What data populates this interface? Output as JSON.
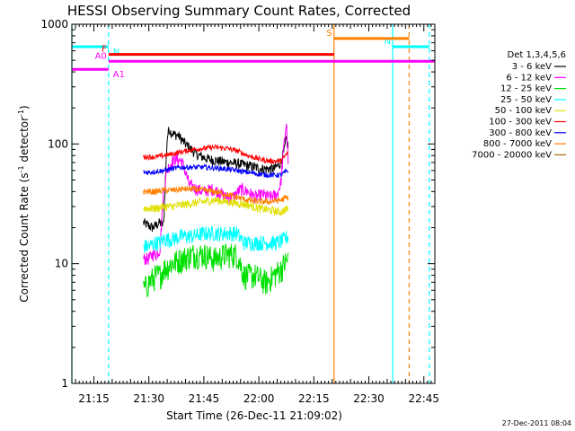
{
  "chart_data": {
    "type": "line",
    "title": "HESSI Observing Summary Count Rates, Corrected",
    "xlabel": "Start Time (26-Dec-11 21:09:02)",
    "ylabel_main": "Corrected Count Rate (s",
    "ylabel_sup1": "-1",
    "ylabel_mid": " detector",
    "ylabel_sup2": "-1",
    "ylabel_end": ")",
    "yscale": "log",
    "ylim": [
      1,
      1000
    ],
    "xlim": [
      "21:09:02",
      "22:48:00"
    ],
    "xlim_minutes": [
      0,
      99
    ],
    "x_ticks": [
      {
        "label": "21:15",
        "t": 6
      },
      {
        "label": "21:30",
        "t": 21
      },
      {
        "label": "21:45",
        "t": 36
      },
      {
        "label": "22:00",
        "t": 51
      },
      {
        "label": "22:15",
        "t": 66
      },
      {
        "label": "22:30",
        "t": 81
      },
      {
        "label": "22:45",
        "t": 96
      }
    ],
    "y_ticks": [
      {
        "label": "1",
        "v": 1
      },
      {
        "label": "10",
        "v": 10
      },
      {
        "label": "100",
        "v": 100
      },
      {
        "label": "1000",
        "v": 1000
      }
    ],
    "legend_title": "Det 1,3,4,5,6",
    "legend_position": "right",
    "series": [
      {
        "name": "3 - 6 keV",
        "color": "#000000",
        "x": [
          19.5,
          22,
          24,
          25,
          25.5,
          26,
          26.5,
          27,
          28,
          29,
          31,
          34,
          37,
          40,
          43,
          46,
          49,
          52,
          55,
          56,
          57,
          58,
          58.5,
          59
        ],
        "y": [
          22,
          20,
          22,
          21,
          50,
          112,
          135,
          125,
          120,
          118,
          100,
          82,
          75,
          72,
          70,
          68,
          65,
          62,
          62,
          65,
          70,
          90,
          110,
          95
        ]
      },
      {
        "name": "6 - 12 keV",
        "color": "#ff00ff",
        "x": [
          19.5,
          21,
          22,
          23,
          24,
          25,
          26,
          28,
          30,
          31,
          32,
          34,
          36,
          38,
          40,
          42,
          44,
          46,
          48,
          50,
          52,
          54,
          56,
          57,
          58,
          58.5,
          59
        ],
        "y": [
          11,
          11,
          12,
          12,
          13,
          40,
          62,
          75,
          72,
          58,
          46,
          42,
          40,
          42,
          40,
          36,
          36,
          42,
          40,
          36,
          38,
          36,
          38,
          48,
          110,
          150,
          70
        ]
      },
      {
        "name": "12 - 25 keV",
        "color": "#00e000",
        "x": [
          19.5,
          21,
          23,
          24,
          25,
          27,
          30,
          33,
          36,
          39,
          42,
          45,
          47,
          50,
          53,
          55,
          57,
          58,
          59
        ],
        "y": [
          6,
          7,
          8,
          8,
          9,
          10,
          11,
          12,
          12,
          11,
          12,
          12,
          8,
          8,
          7,
          8,
          9,
          10,
          11
        ]
      },
      {
        "name": "25 - 50 keV",
        "color": "#00ffff",
        "x": [
          19.5,
          21,
          23,
          24,
          25,
          27,
          30,
          33,
          36,
          39,
          42,
          45,
          47,
          50,
          53,
          56,
          58,
          59
        ],
        "y": [
          14,
          14,
          15,
          15,
          16,
          16,
          17,
          17,
          18,
          18,
          18,
          18,
          15,
          15,
          15,
          15,
          16,
          17
        ]
      },
      {
        "name": "50 - 100 keV",
        "color": "#e0e000",
        "x": [
          19.5,
          21,
          23,
          25,
          27,
          30,
          33,
          36,
          39,
          42,
          45,
          48,
          51,
          54,
          57,
          59
        ],
        "y": [
          29,
          29,
          29,
          30,
          30,
          31,
          32,
          33,
          34,
          33,
          32,
          31,
          29,
          28,
          27,
          29
        ]
      },
      {
        "name": "100 - 300 keV",
        "color": "#ff0000",
        "x": [
          19.5,
          21,
          23,
          25,
          27,
          30,
          33,
          36,
          39,
          42,
          45,
          48,
          51,
          54,
          57,
          59
        ],
        "y": [
          78,
          78,
          78,
          80,
          82,
          86,
          90,
          92,
          94,
          92,
          88,
          80,
          75,
          72,
          72,
          85
        ]
      },
      {
        "name": "300 - 800 keV",
        "color": "#0000ff",
        "x": [
          19.5,
          21,
          23,
          25,
          27,
          30,
          33,
          36,
          39,
          42,
          45,
          48,
          51,
          54,
          57,
          59
        ],
        "y": [
          58,
          58,
          59,
          60,
          62,
          64,
          64,
          64,
          63,
          62,
          60,
          58,
          56,
          55,
          55,
          60
        ]
      },
      {
        "name": "800 - 7000 keV",
        "color": "#ff8000",
        "x": [
          19.5,
          21,
          23,
          25,
          27,
          30,
          33,
          36,
          39,
          42,
          45,
          48,
          51,
          54,
          57,
          59
        ],
        "y": [
          40,
          40,
          40,
          41,
          41,
          42,
          42,
          41,
          40,
          38,
          36,
          34,
          33,
          33,
          34,
          36
        ]
      },
      {
        "name": "7000 - 20000 keV",
        "color": "#a07000",
        "x": [],
        "y": []
      }
    ],
    "flags": [
      {
        "label": "N",
        "color": "#00ffff",
        "t0": 0,
        "t1": 10,
        "v": 650
      },
      {
        "label": "N",
        "color": "#00ffff",
        "t0": 87.5,
        "t1": 97.5,
        "v": 650
      },
      {
        "label": "F",
        "color": "#ff0000",
        "t0": 10,
        "t1": 71.5,
        "v": 560
      },
      {
        "label": "A0",
        "color": "#ff00ff",
        "t0": 10,
        "t1": 99,
        "v": 490
      },
      {
        "label": "A1",
        "color": "#ff00ff",
        "t0": 0,
        "t1": 10,
        "v": 420
      },
      {
        "label": "S",
        "color": "#ff8000",
        "t0": 71.5,
        "t1": 92,
        "v": 760
      }
    ],
    "vlines": [
      {
        "t": 0,
        "color": "#00ffff",
        "dash": false
      },
      {
        "t": 10,
        "color": "#00ffff",
        "dash": true
      },
      {
        "t": 71.5,
        "color": "#ff8000",
        "dash": false
      },
      {
        "t": 87.5,
        "color": "#00ffff",
        "dash": false
      },
      {
        "t": 92,
        "color": "#ff8000",
        "dash": true
      },
      {
        "t": 97.5,
        "color": "#00ffff",
        "dash": true
      }
    ],
    "footer": "27-Dec-2011 08:04",
    "grid": false
  }
}
